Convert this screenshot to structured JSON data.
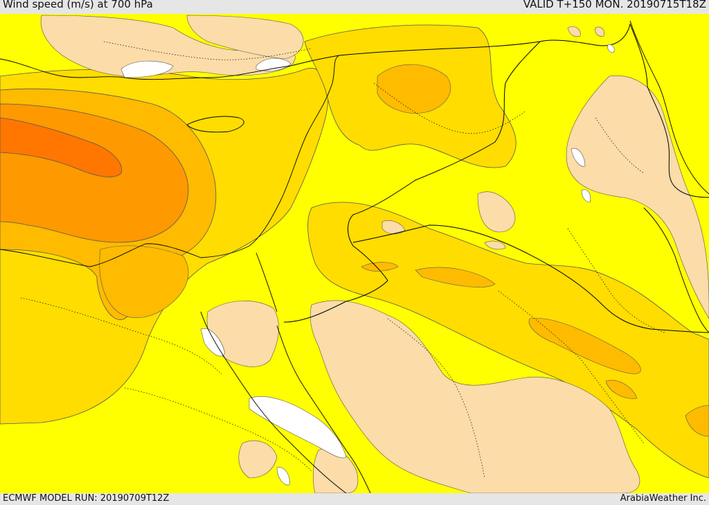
{
  "header": {
    "title": "Wind speed (m/s) at 700 hPa",
    "valid": "VALID T+150 MON. 20190715T18Z"
  },
  "footer": {
    "model_run": "ECMWF MODEL RUN: 20190709T12Z",
    "credit": "ArabiaWeather Inc."
  },
  "colors": {
    "speed_0_5": "#ffffff",
    "speed_5_10": "#fcdca8",
    "speed_10_15": "#ffff00",
    "speed_15_20": "#ffdd00",
    "speed_20_25": "#ffbb00",
    "speed_25_30": "#ff9900",
    "speed_30_35": "#ff7700",
    "contour": "#333333",
    "border": "#000000"
  }
}
